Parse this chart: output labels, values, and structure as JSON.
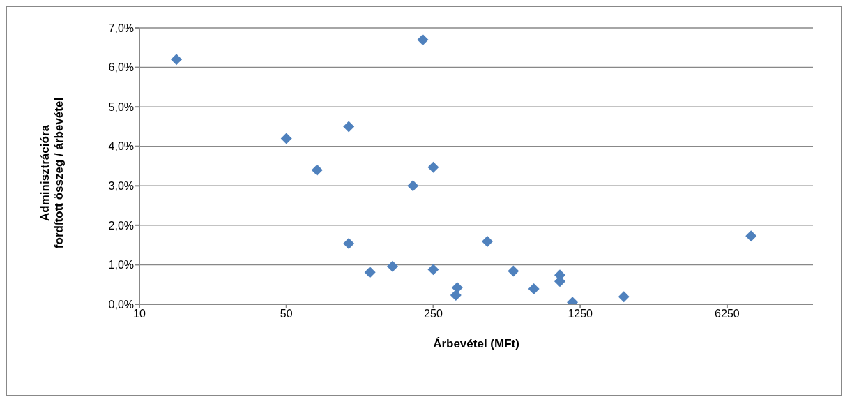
{
  "chart_data": {
    "type": "scatter",
    "xlabel": "Árbevétel (MFt)",
    "ylabel": "Adminisztrációra\nfordított összeg / árbevétel",
    "log": "x",
    "xlim": [
      10,
      16000
    ],
    "xticks": [
      10,
      50,
      250,
      1250,
      6250
    ],
    "ylim": [
      0,
      7
    ],
    "yticks": [
      {
        "value": 0,
        "label": "0,0%"
      },
      {
        "value": 1,
        "label": "1,0%"
      },
      {
        "value": 2,
        "label": "2,0%"
      },
      {
        "value": 3,
        "label": "3,0%"
      },
      {
        "value": 4,
        "label": "4,0%"
      },
      {
        "value": 5,
        "label": "5,0%"
      },
      {
        "value": 6,
        "label": "6,0%"
      },
      {
        "value": 7,
        "label": "7,0%"
      }
    ],
    "grid": "y",
    "marker": "diamond",
    "series": [
      {
        "color": "#4f81bd",
        "x": [
          15,
          223,
          50,
          99,
          70,
          250,
          200,
          99,
          125,
          160,
          250,
          325,
          320,
          452,
          601,
          752,
          1000,
          1000,
          1148,
          2016,
          8120
        ],
        "values": [
          6.2,
          6.7,
          4.2,
          4.5,
          3.4,
          3.47,
          3.0,
          1.54,
          0.81,
          0.96,
          0.88,
          0.42,
          0.23,
          1.59,
          0.84,
          0.39,
          0.74,
          0.58,
          0.05,
          0.19,
          1.73
        ]
      }
    ]
  }
}
